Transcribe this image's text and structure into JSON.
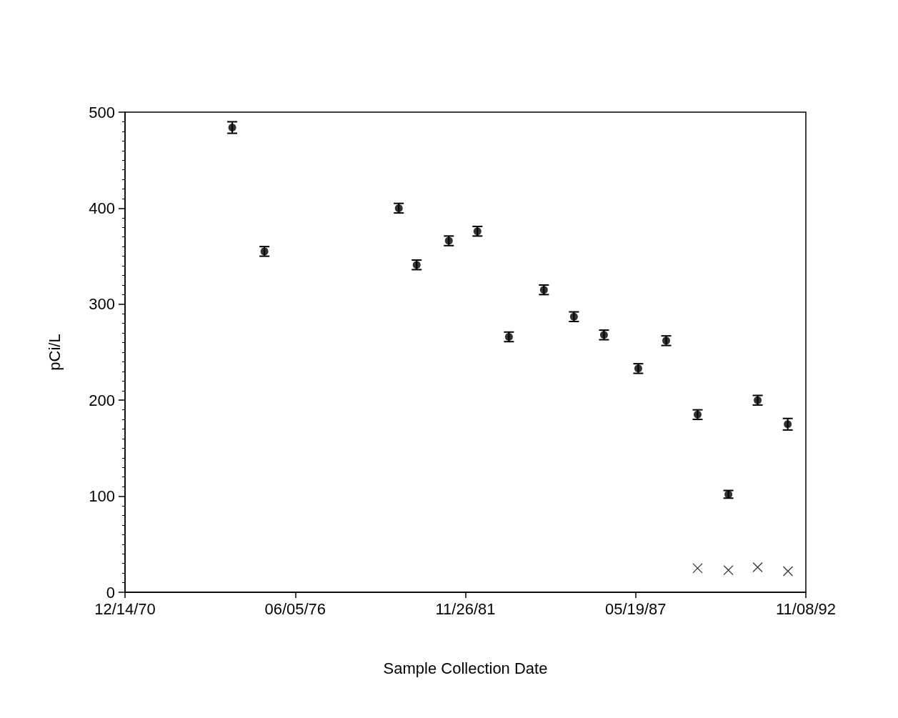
{
  "chart_data": {
    "type": "scatter",
    "xlabel": "Sample Collection Date",
    "ylabel": "pCi/L",
    "xlim": [
      "1970-12-14",
      "1992-11-08"
    ],
    "xticks": [
      {
        "value": "1970-12-14",
        "label": "12/14/70"
      },
      {
        "value": "1976-06-05",
        "label": "06/05/76"
      },
      {
        "value": "1981-11-26",
        "label": "11/26/81"
      },
      {
        "value": "1987-05-19",
        "label": "05/19/87"
      },
      {
        "value": "1992-11-08",
        "label": "11/08/92"
      }
    ],
    "ylim": [
      0,
      500
    ],
    "yticks": [
      0,
      100,
      200,
      300,
      400,
      500
    ],
    "grid": false,
    "series": [
      {
        "color": "#000000",
        "marker": "circle",
        "x": [
          "1974-05-27",
          "1975-06-09",
          "1979-10-05",
          "1980-05-02",
          "1981-05-15",
          "1982-04-16",
          "1983-04-21",
          "1984-06-05",
          "1985-05-24",
          "1986-05-12",
          "1987-06-19",
          "1988-05-12",
          "1989-05-16",
          "1990-05-13",
          "1991-04-22",
          "1992-04-09"
        ],
        "values": [
          484,
          355,
          400,
          341,
          366,
          376,
          266,
          315,
          287,
          268,
          233,
          262,
          185,
          102,
          200,
          175
        ],
        "errors": [
          6,
          5,
          5,
          5,
          5,
          5,
          5,
          5,
          5,
          5,
          5,
          5,
          5,
          4,
          5,
          6
        ]
      },
      {
        "color": "#000000",
        "marker": "cross",
        "x": [
          "1989-05-16",
          "1990-05-13",
          "1991-04-22",
          "1992-04-12"
        ],
        "values": [
          25,
          23,
          26,
          22
        ]
      }
    ]
  }
}
